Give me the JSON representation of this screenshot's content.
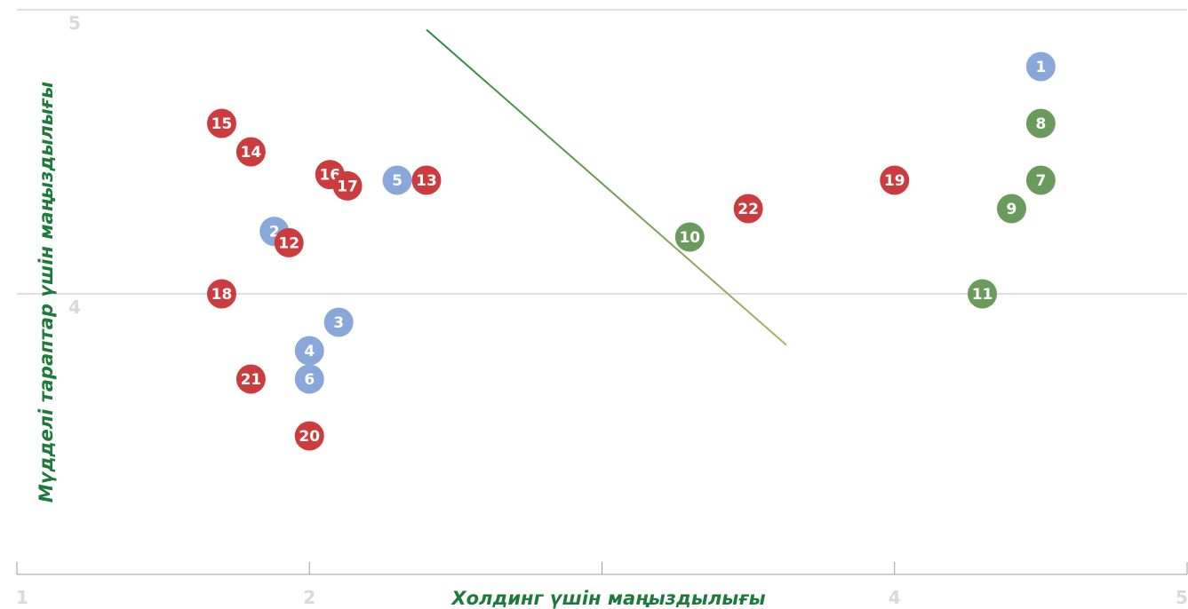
{
  "chart_data": {
    "type": "scatter",
    "xlabel": "Холдинг үшін маңыздылығы",
    "ylabel": "Мүдделі тараптар үшін маңыздылығы",
    "xlim": [
      1,
      5
    ],
    "ylim": [
      3.05,
      5.05
    ],
    "x_ticks": [
      {
        "value": 1,
        "label": "1"
      },
      {
        "value": 2,
        "label": "2"
      },
      {
        "value": 3,
        "label": ""
      },
      {
        "value": 4,
        "label": "4"
      },
      {
        "value": 5,
        "label": "5"
      }
    ],
    "y_ticks": [
      {
        "value": 5,
        "label": "5"
      },
      {
        "value": 4,
        "label": "4"
      }
    ],
    "grid": {
      "horizontal": [
        5,
        4
      ]
    },
    "colors": {
      "blue": "#8aa7da",
      "red": "#cc3b3e",
      "green": "#6a9b5c"
    },
    "trend_line": {
      "from": [
        2.4,
        4.93
      ],
      "to": [
        3.63,
        3.82
      ]
    },
    "points": [
      {
        "label": "1",
        "x": 4.5,
        "y": 4.8,
        "color": "blue"
      },
      {
        "label": "2",
        "x": 1.88,
        "y": 4.22,
        "color": "blue"
      },
      {
        "label": "3",
        "x": 2.1,
        "y": 3.9,
        "color": "blue"
      },
      {
        "label": "4",
        "x": 2.0,
        "y": 3.8,
        "color": "blue"
      },
      {
        "label": "5",
        "x": 2.3,
        "y": 4.4,
        "color": "blue"
      },
      {
        "label": "6",
        "x": 2.0,
        "y": 3.7,
        "color": "blue"
      },
      {
        "label": "7",
        "x": 4.5,
        "y": 4.4,
        "color": "green"
      },
      {
        "label": "8",
        "x": 4.5,
        "y": 4.6,
        "color": "green"
      },
      {
        "label": "9",
        "x": 4.4,
        "y": 4.3,
        "color": "green"
      },
      {
        "label": "10",
        "x": 3.3,
        "y": 4.2,
        "color": "green"
      },
      {
        "label": "11",
        "x": 4.3,
        "y": 4.0,
        "color": "green"
      },
      {
        "label": "12",
        "x": 1.93,
        "y": 4.18,
        "color": "red"
      },
      {
        "label": "13",
        "x": 2.4,
        "y": 4.4,
        "color": "red"
      },
      {
        "label": "14",
        "x": 1.8,
        "y": 4.5,
        "color": "red"
      },
      {
        "label": "15",
        "x": 1.7,
        "y": 4.6,
        "color": "red"
      },
      {
        "label": "16",
        "x": 2.07,
        "y": 4.42,
        "color": "red"
      },
      {
        "label": "17",
        "x": 2.13,
        "y": 4.38,
        "color": "red"
      },
      {
        "label": "18",
        "x": 1.7,
        "y": 4.0,
        "color": "red"
      },
      {
        "label": "19",
        "x": 4.0,
        "y": 4.4,
        "color": "red"
      },
      {
        "label": "20",
        "x": 2.0,
        "y": 3.5,
        "color": "red"
      },
      {
        "label": "21",
        "x": 1.8,
        "y": 3.7,
        "color": "red"
      },
      {
        "label": "22",
        "x": 3.5,
        "y": 4.3,
        "color": "red"
      }
    ]
  }
}
